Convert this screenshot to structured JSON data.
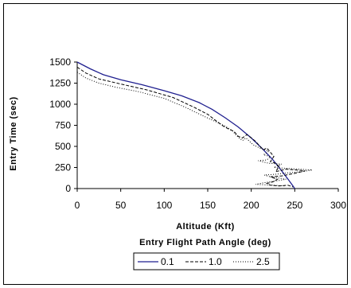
{
  "chart_data": {
    "type": "line",
    "title": "",
    "xlabel": "Altitude (Kft)",
    "ylabel": "Entry Time (sec)",
    "xlim": [
      0,
      300
    ],
    "ylim": [
      0,
      1500
    ],
    "x_ticks": [
      "0",
      "50",
      "100",
      "150",
      "200",
      "250",
      "300"
    ],
    "y_ticks": [
      "0",
      "250",
      "500",
      "750",
      "1000",
      "1250",
      "1500"
    ],
    "grid": false,
    "legend_title": "Entry Flight Path Angle (deg)",
    "legend_position": "bottom",
    "series": [
      {
        "name": "0.1",
        "color": "#1f1f8f",
        "style": "solid",
        "points": [
          [
            0,
            1500
          ],
          [
            15,
            1420
          ],
          [
            30,
            1350
          ],
          [
            50,
            1290
          ],
          [
            75,
            1230
          ],
          [
            100,
            1160
          ],
          [
            120,
            1100
          ],
          [
            140,
            1020
          ],
          [
            155,
            940
          ],
          [
            170,
            840
          ],
          [
            185,
            730
          ],
          [
            200,
            600
          ],
          [
            213,
            470
          ],
          [
            225,
            340
          ],
          [
            235,
            210
          ],
          [
            243,
            100
          ],
          [
            248,
            30
          ],
          [
            250,
            0
          ]
        ]
      },
      {
        "name": "1.0",
        "color": "#000000",
        "style": "dashed",
        "points": [
          [
            0,
            1440
          ],
          [
            10,
            1370
          ],
          [
            25,
            1300
          ],
          [
            50,
            1240
          ],
          [
            80,
            1170
          ],
          [
            110,
            1080
          ],
          [
            135,
            960
          ],
          [
            150,
            880
          ],
          [
            160,
            800
          ],
          [
            168,
            740
          ],
          [
            175,
            700
          ],
          [
            180,
            680
          ],
          [
            185,
            620
          ],
          [
            190,
            600
          ],
          [
            195,
            640
          ],
          [
            200,
            600
          ],
          [
            205,
            560
          ],
          [
            210,
            500
          ],
          [
            214,
            460
          ],
          [
            218,
            480
          ],
          [
            222,
            430
          ],
          [
            226,
            380
          ],
          [
            222,
            320
          ],
          [
            228,
            300
          ],
          [
            232,
            260
          ],
          [
            228,
            200
          ],
          [
            240,
            230
          ],
          [
            252,
            220
          ],
          [
            262,
            210
          ],
          [
            250,
            180
          ],
          [
            235,
            150
          ],
          [
            222,
            140
          ],
          [
            230,
            110
          ],
          [
            225,
            80
          ],
          [
            218,
            60
          ],
          [
            222,
            40
          ],
          [
            232,
            30
          ],
          [
            242,
            40
          ],
          [
            248,
            20
          ]
        ]
      },
      {
        "name": "2.5",
        "color": "#000000",
        "style": "dotted",
        "points": [
          [
            0,
            1380
          ],
          [
            10,
            1310
          ],
          [
            25,
            1250
          ],
          [
            45,
            1200
          ],
          [
            70,
            1150
          ],
          [
            100,
            1070
          ],
          [
            125,
            960
          ],
          [
            145,
            860
          ],
          [
            160,
            790
          ],
          [
            170,
            740
          ],
          [
            178,
            690
          ],
          [
            182,
            640
          ],
          [
            186,
            600
          ],
          [
            190,
            570
          ],
          [
            194,
            600
          ],
          [
            198,
            560
          ],
          [
            202,
            520
          ],
          [
            208,
            490
          ],
          [
            212,
            470
          ],
          [
            216,
            460
          ],
          [
            220,
            440
          ],
          [
            214,
            400
          ],
          [
            222,
            380
          ],
          [
            218,
            340
          ],
          [
            208,
            330
          ],
          [
            220,
            300
          ],
          [
            235,
            290
          ],
          [
            226,
            250
          ],
          [
            240,
            240
          ],
          [
            255,
            230
          ],
          [
            270,
            220
          ],
          [
            258,
            200
          ],
          [
            245,
            190
          ],
          [
            228,
            170
          ],
          [
            215,
            160
          ],
          [
            222,
            140
          ],
          [
            240,
            110
          ],
          [
            228,
            90
          ],
          [
            215,
            70
          ],
          [
            205,
            50
          ],
          [
            225,
            40
          ],
          [
            240,
            30
          ]
        ]
      }
    ]
  }
}
